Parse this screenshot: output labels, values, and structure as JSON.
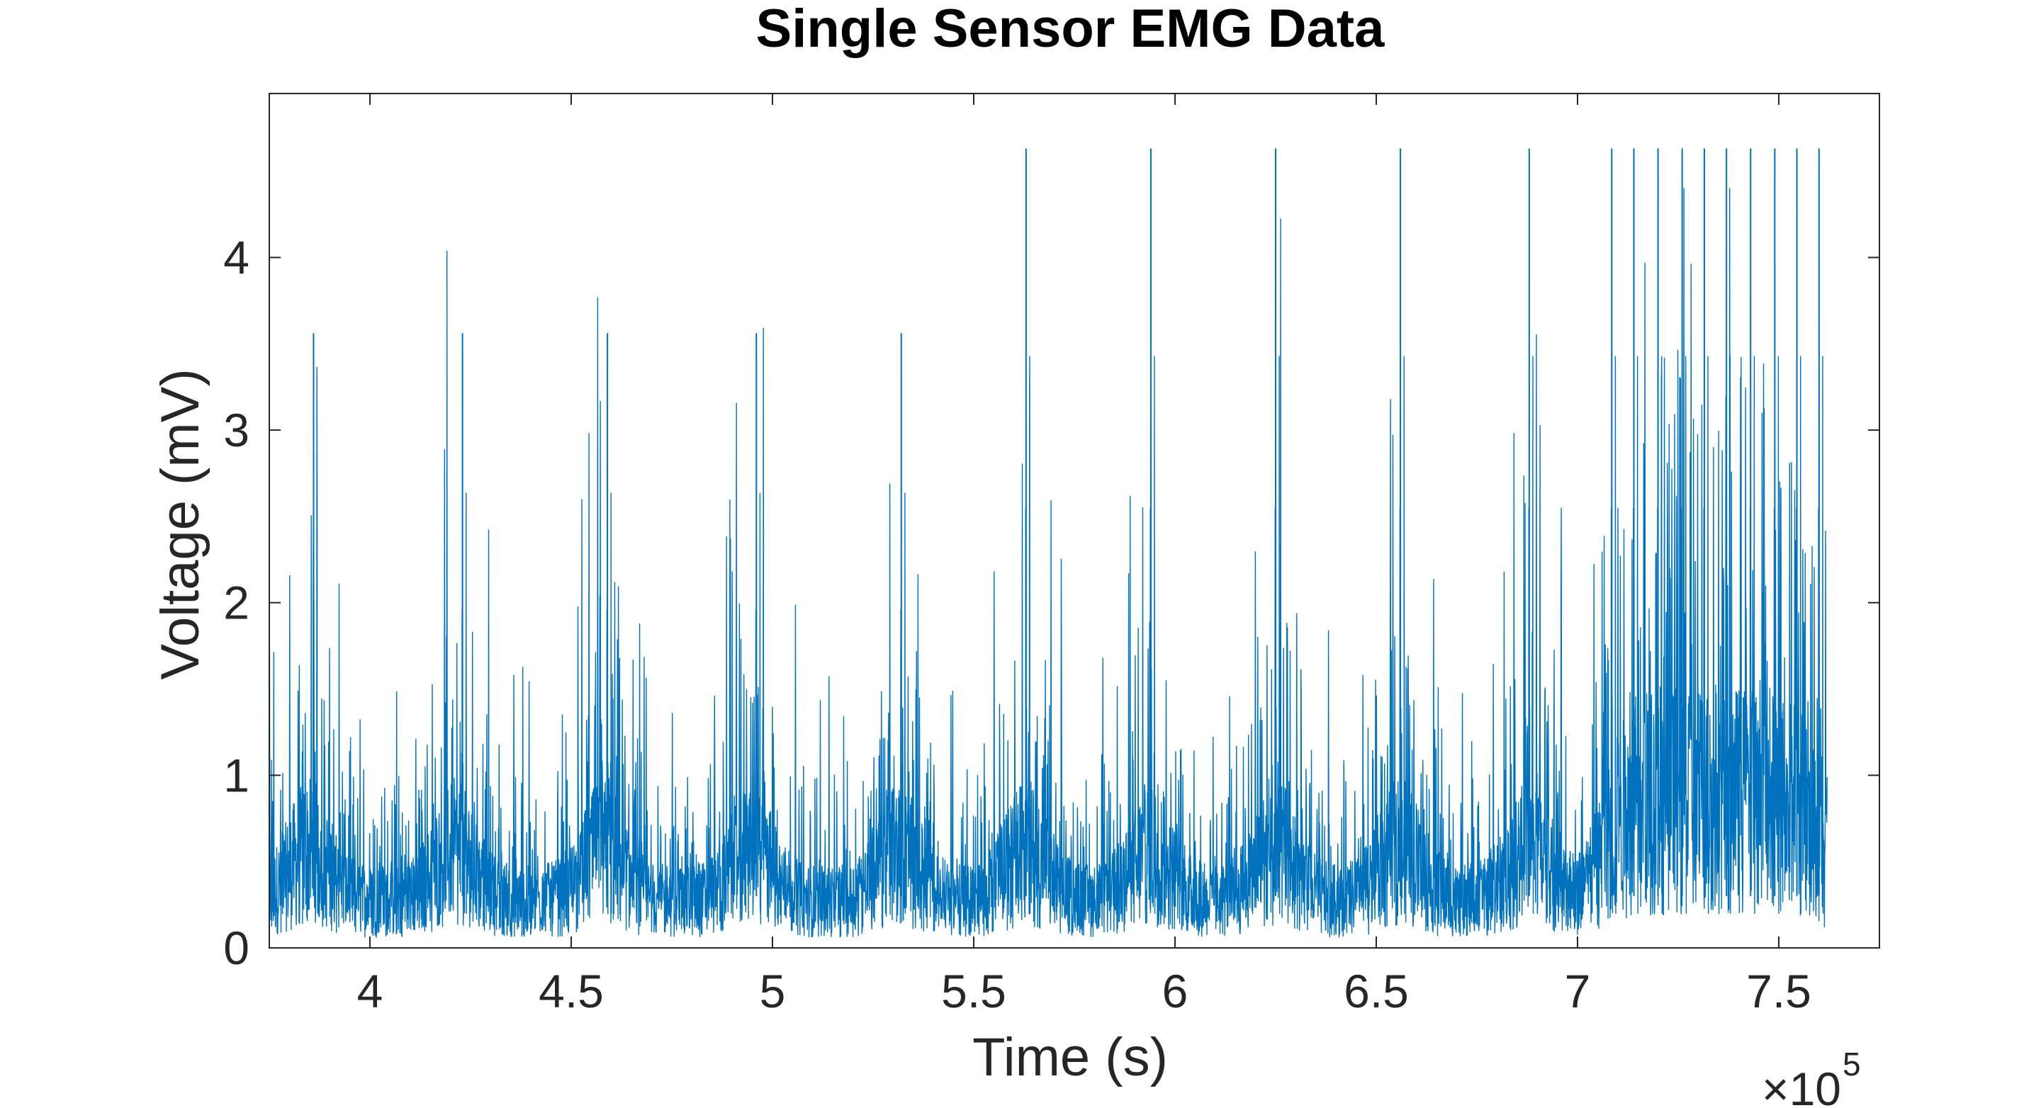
{
  "chart_data": {
    "type": "line",
    "title": "Single Sensor EMG Data",
    "xlabel": "Time (s)",
    "ylabel": "Voltage (mV)",
    "x_exponent_base": "×10",
    "x_exponent_power": "5",
    "xlim": [
      375000,
      775000
    ],
    "ylim": [
      0,
      4.95
    ],
    "x_data_range": [
      375000,
      762000
    ],
    "x_ticks": [
      400000,
      450000,
      500000,
      550000,
      600000,
      650000,
      700000,
      750000
    ],
    "x_tick_labels": [
      "4",
      "4.5",
      "5",
      "5.5",
      "6",
      "6.5",
      "7",
      "7.5"
    ],
    "y_ticks": [
      0,
      1,
      2,
      3,
      4
    ],
    "y_tick_labels": [
      "0",
      "1",
      "2",
      "3",
      "4"
    ],
    "grid": false,
    "legend": "none",
    "series": [
      {
        "color": "#0072BD",
        "baseline_mean": 0.4,
        "burst_mean": 0.7,
        "burst_centers": [
          385000,
          421000,
          458000,
          495000,
          531000,
          563000,
          594000,
          625000,
          656000,
          688000,
          710000,
          716000,
          722000,
          728000,
          734000,
          740000,
          746000,
          752000,
          758000
        ],
        "peaks": [
          {
            "x": 386000,
            "y": 3.56
          },
          {
            "x": 423000,
            "y": 3.56
          },
          {
            "x": 459000,
            "y": 3.56
          },
          {
            "x": 496000,
            "y": 3.56
          },
          {
            "x": 532000,
            "y": 3.56
          },
          {
            "x": 563000,
            "y": 4.63
          },
          {
            "x": 594000,
            "y": 4.63
          },
          {
            "x": 625000,
            "y": 4.63
          },
          {
            "x": 656000,
            "y": 4.63
          },
          {
            "x": 688000,
            "y": 4.63
          },
          {
            "x": 708500,
            "y": 4.63
          },
          {
            "x": 714000,
            "y": 4.63
          },
          {
            "x": 720000,
            "y": 4.63
          },
          {
            "x": 726000,
            "y": 4.63
          },
          {
            "x": 731500,
            "y": 4.63
          },
          {
            "x": 737000,
            "y": 4.63
          },
          {
            "x": 743000,
            "y": 4.63
          },
          {
            "x": 749000,
            "y": 4.63
          },
          {
            "x": 754500,
            "y": 4.63
          },
          {
            "x": 760000,
            "y": 4.63
          }
        ]
      }
    ]
  }
}
